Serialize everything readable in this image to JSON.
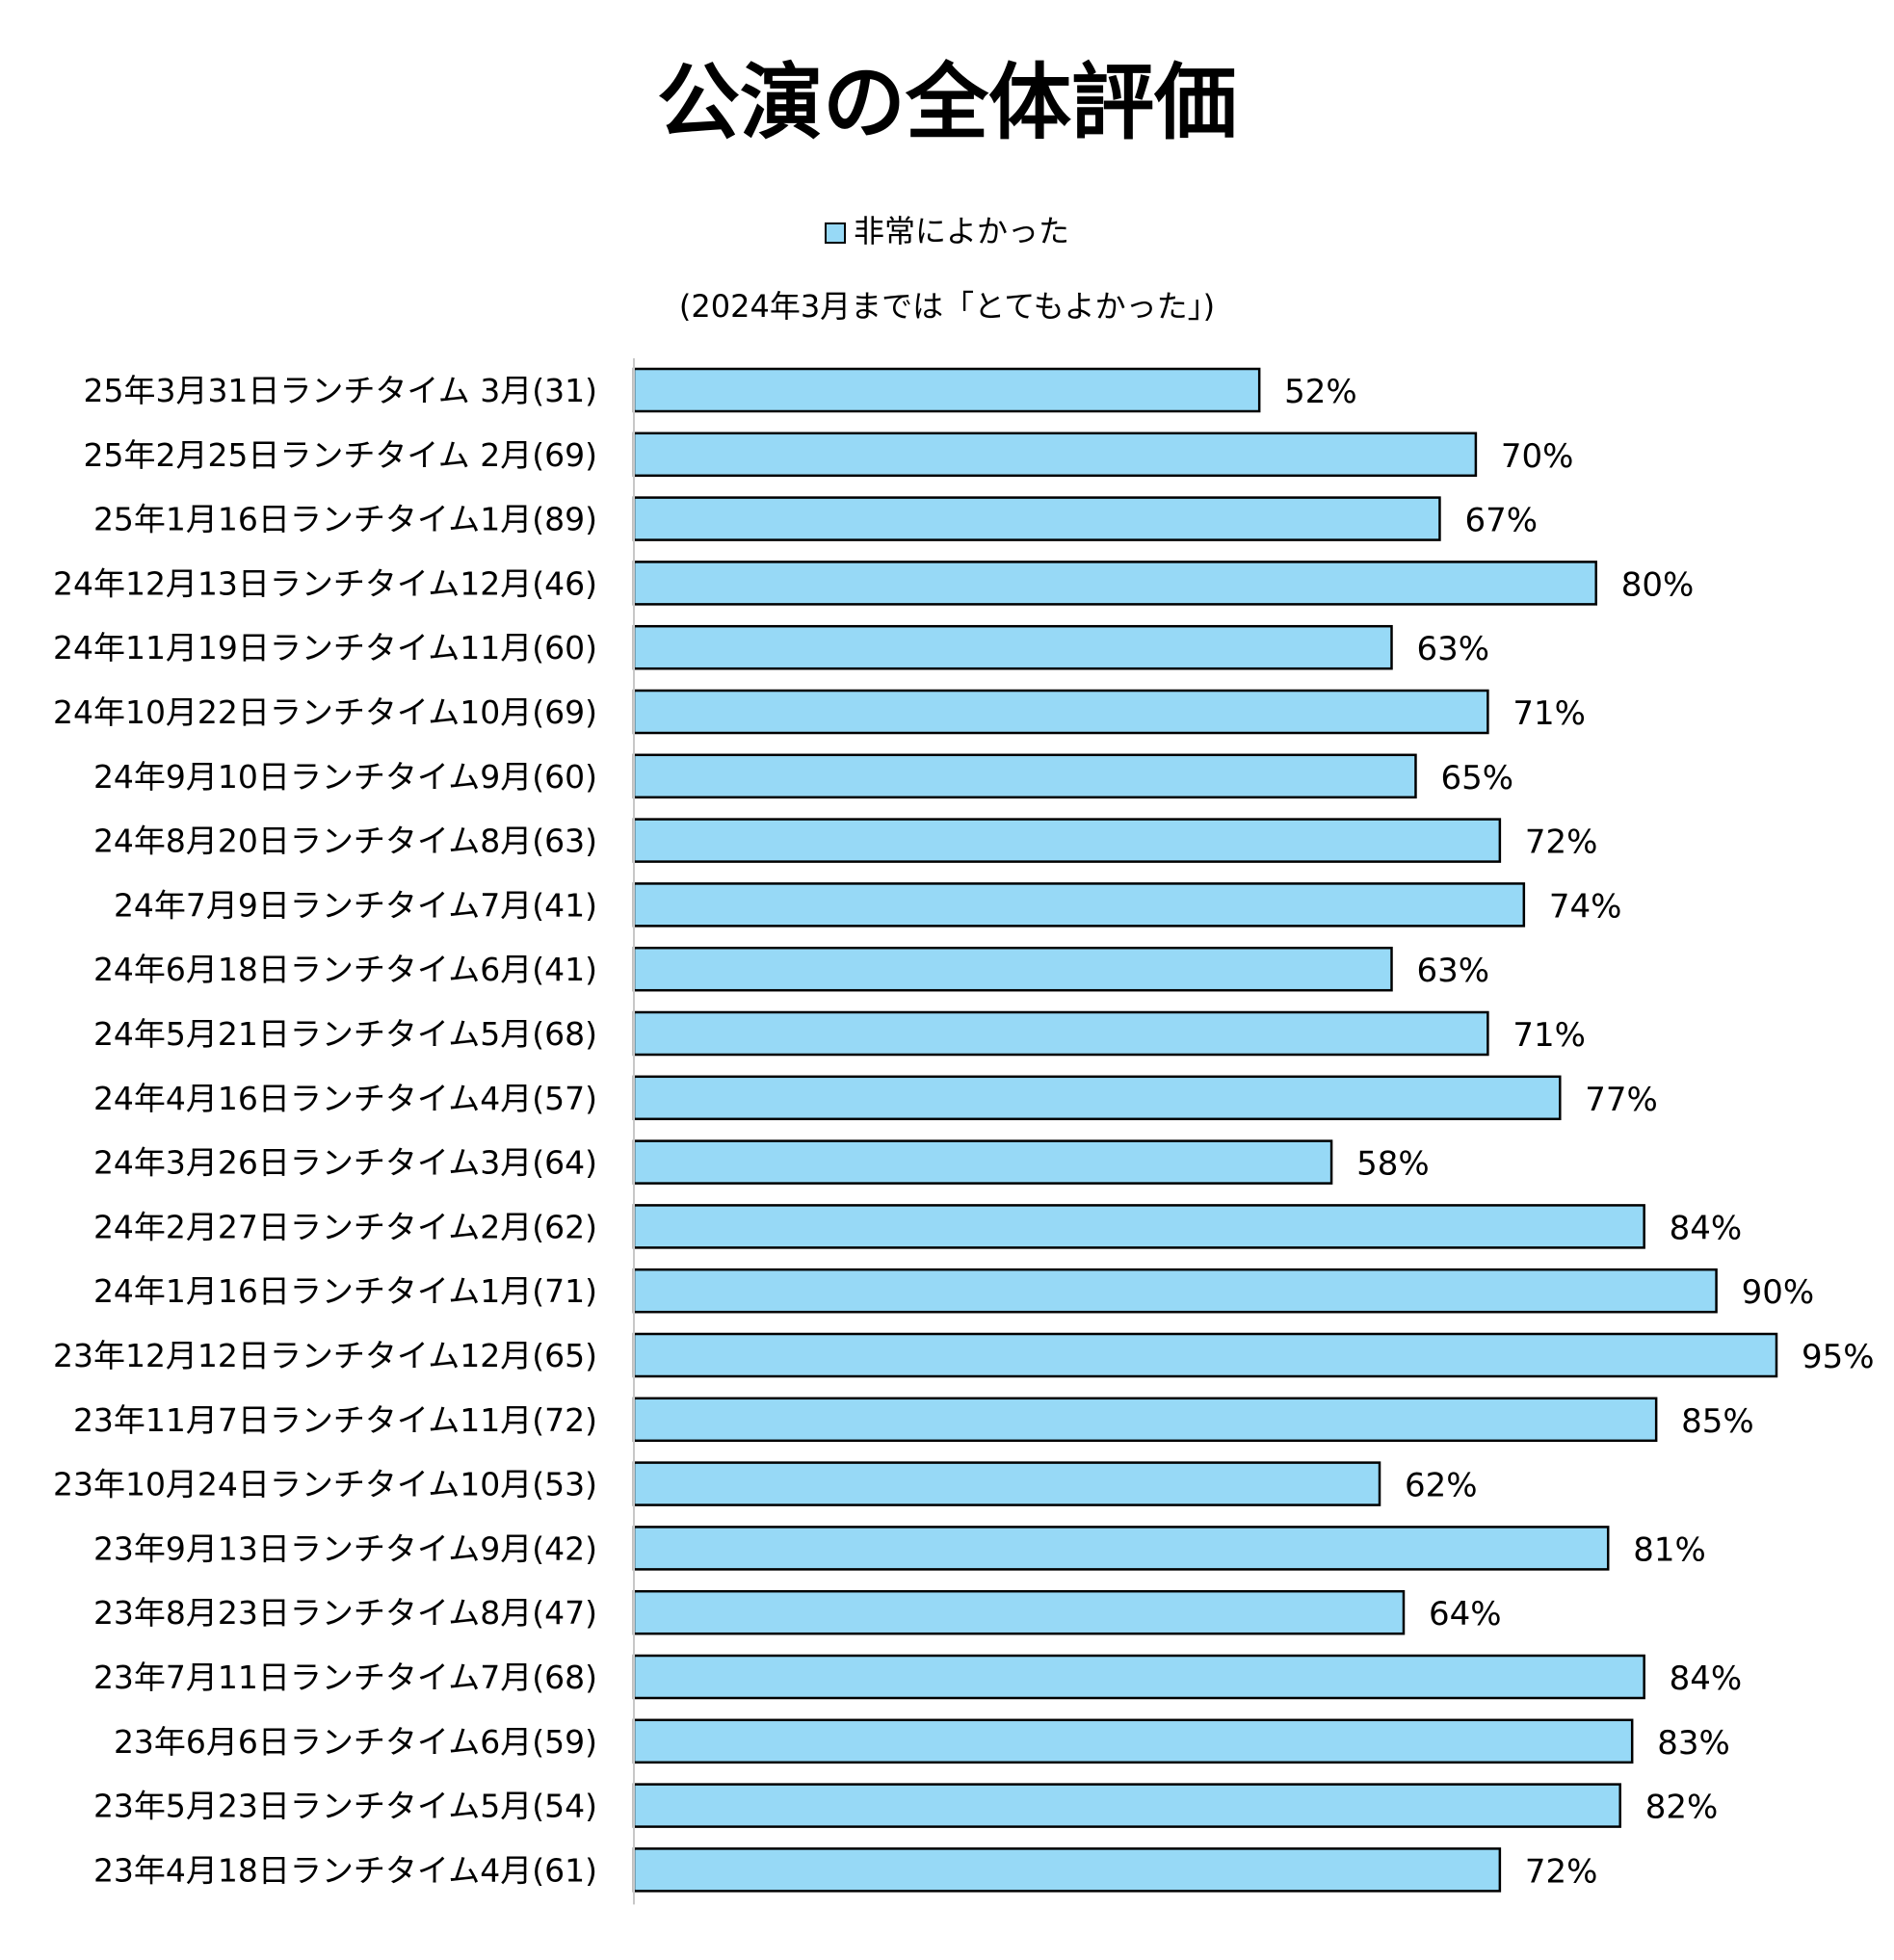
{
  "colors": {
    "bar": "#97D9F6",
    "bar_border": "#000000",
    "axis": "#C8C8C8"
  },
  "chart_data": {
    "type": "bar",
    "orientation": "horizontal",
    "title": "公演の全体評価",
    "subtitle": "(2024年3月までは「とてもよかった」)",
    "legend": {
      "position": "top",
      "entries": [
        "非常によかった"
      ]
    },
    "grid": false,
    "xlim": [
      0,
      100
    ],
    "categories": [
      "25年3月31日ランチタイム 3月(31)",
      "25年2月25日ランチタイム 2月(69)",
      "25年1月16日ランチタイム1月(89)",
      "24年12月13日ランチタイム12月(46)",
      "24年11月19日ランチタイム11月(60)",
      "24年10月22日ランチタイム10月(69)",
      "24年9月10日ランチタイム9月(60)",
      "24年8月20日ランチタイム8月(63)",
      "24年7月9日ランチタイム7月(41)",
      "24年6月18日ランチタイム6月(41)",
      "24年5月21日ランチタイム5月(68)",
      "24年4月16日ランチタイム4月(57)",
      "24年3月26日ランチタイム3月(64)",
      "24年2月27日ランチタイム2月(62)",
      "24年1月16日ランチタイム1月(71)",
      "23年12月12日ランチタイム12月(65)",
      "23年11月7日ランチタイム11月(72)",
      "23年10月24日ランチタイム10月(53)",
      "23年9月13日ランチタイム9月(42)",
      "23年8月23日ランチタイム8月(47)",
      "23年7月11日ランチタイム7月(68)",
      "23年6月6日ランチタイム6月(59)",
      "23年5月23日ランチタイム5月(54)",
      "23年4月18日ランチタイム4月(61)"
    ],
    "series": [
      {
        "name": "非常によかった",
        "values": [
          52,
          70,
          67,
          80,
          63,
          71,
          65,
          72,
          74,
          63,
          71,
          77,
          58,
          84,
          90,
          95,
          85,
          62,
          81,
          64,
          84,
          83,
          82,
          72
        ],
        "data_labels": [
          "52%",
          "70%",
          "67%",
          "80%",
          "63%",
          "71%",
          "65%",
          "72%",
          "74%",
          "63%",
          "71%",
          "77%",
          "58%",
          "84%",
          "90%",
          "95%",
          "85%",
          "62%",
          "81%",
          "64%",
          "84%",
          "83%",
          "82%",
          "72%"
        ]
      }
    ]
  }
}
